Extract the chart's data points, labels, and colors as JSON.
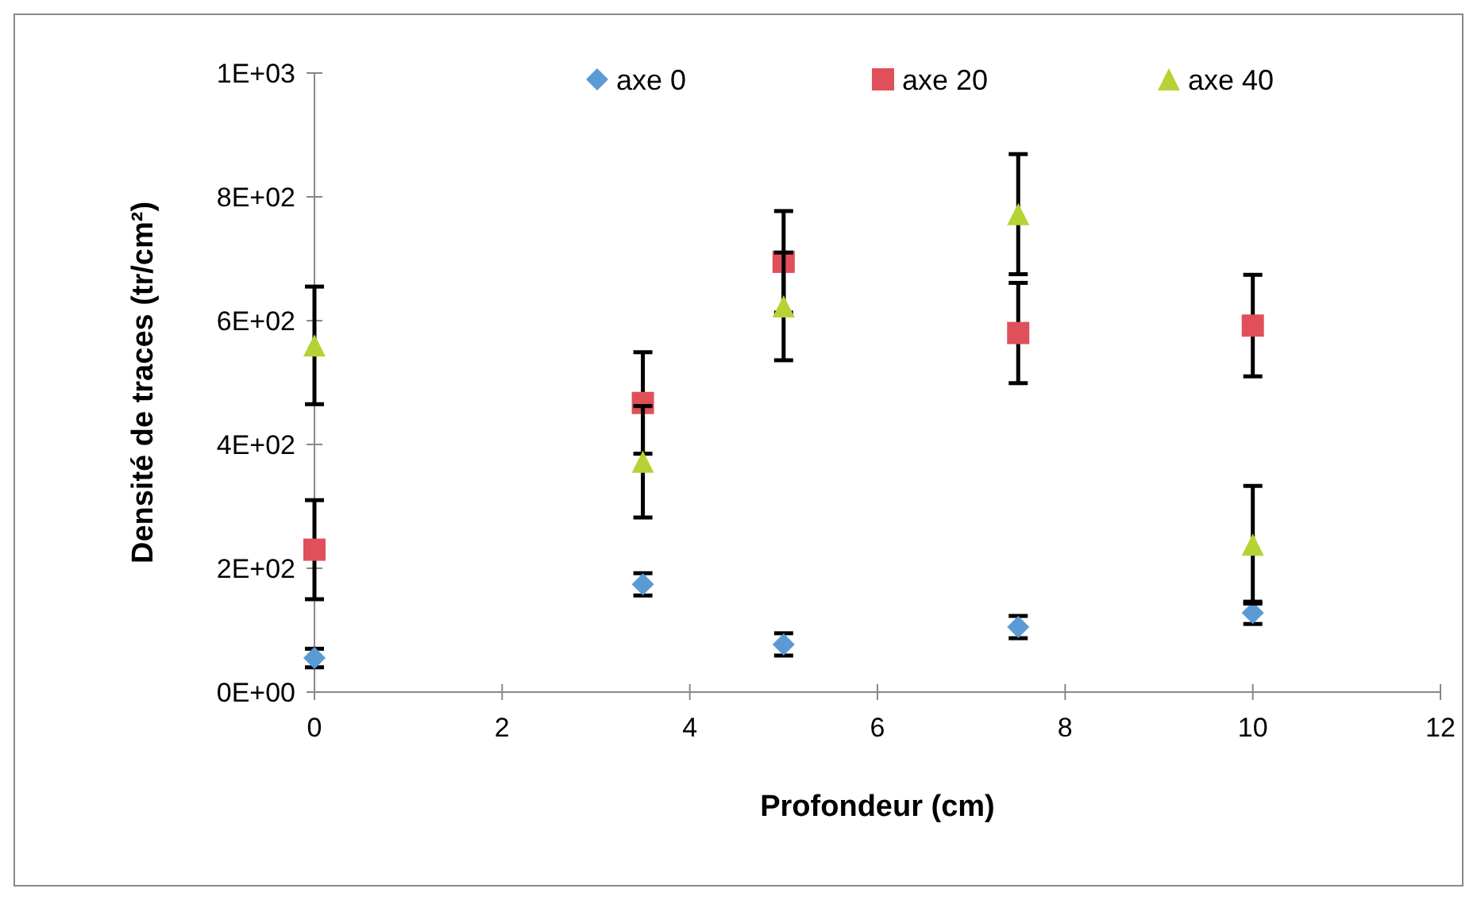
{
  "chart_data": {
    "type": "scatter",
    "xlabel": "Profondeur (cm)",
    "ylabel": "Densité de traces (tr/cm²)",
    "x": [
      0,
      3.5,
      5,
      7.5,
      10
    ],
    "series": [
      {
        "name": "axe 0",
        "color": "#5b9bd5",
        "marker": "diamond",
        "values": [
          55,
          174,
          77,
          105,
          128
        ],
        "errors": [
          15,
          18,
          18,
          18,
          18
        ]
      },
      {
        "name": "axe 20",
        "color": "#e0505a",
        "marker": "square",
        "values": [
          230,
          467,
          695,
          580,
          592
        ],
        "errors": [
          80,
          82,
          82,
          81,
          82
        ]
      },
      {
        "name": "axe 40",
        "color": "#b5d334",
        "marker": "triangle",
        "values": [
          560,
          372,
          623,
          772,
          238
        ],
        "errors": [
          95,
          90,
          87,
          97,
          95
        ]
      }
    ],
    "xlim": [
      0,
      12
    ],
    "xticks": [
      0,
      2,
      4,
      6,
      8,
      10,
      12
    ],
    "ylim": [
      0,
      1000
    ],
    "yticks": [
      {
        "value": 0,
        "label": "0E+00"
      },
      {
        "value": 200,
        "label": "2E+02"
      },
      {
        "value": 400,
        "label": "4E+02"
      },
      {
        "value": 600,
        "label": "6E+02"
      },
      {
        "value": 800,
        "label": "8E+02"
      },
      {
        "value": 1000,
        "label": "1E+03"
      }
    ],
    "grid": false,
    "legend": "top"
  }
}
